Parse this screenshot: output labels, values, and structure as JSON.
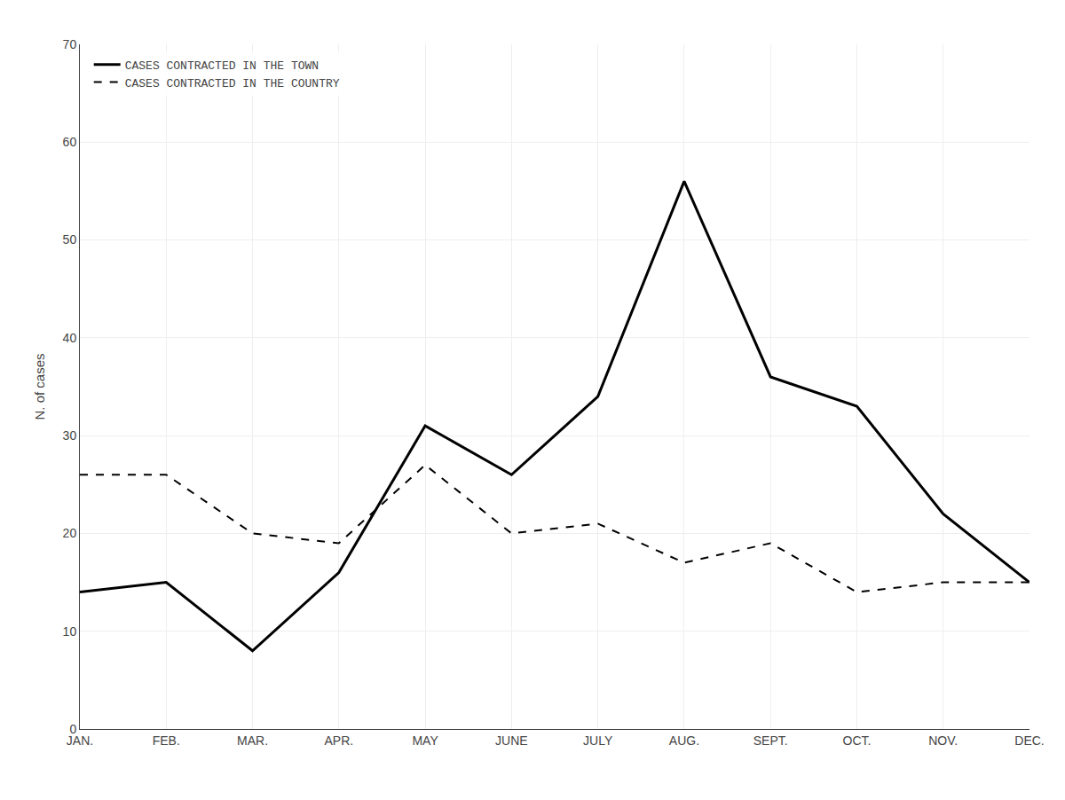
{
  "chart_data": {
    "type": "line",
    "ylabel": "N. of cases",
    "categories": [
      "JAN.",
      "FEB.",
      "MAR.",
      "APR.",
      "MAY",
      "JUNE",
      "JULY",
      "AUG.",
      "SEPT.",
      "OCT.",
      "NOV.",
      "DEC."
    ],
    "series": [
      {
        "name": "CASES CONTRACTED IN THE TOWN",
        "color": "#000000",
        "line_style": "solid",
        "values": [
          14,
          15,
          8,
          16,
          31,
          26,
          34,
          56,
          36,
          33,
          22,
          15
        ]
      },
      {
        "name": "CASES CONTRACTED IN THE COUNTRY",
        "color": "#000000",
        "line_style": "dashed",
        "values": [
          26,
          26,
          20,
          19,
          27,
          20,
          21,
          17,
          19,
          14,
          15,
          15
        ]
      }
    ],
    "ylim": [
      0,
      70
    ],
    "yticks": [
      0,
      10,
      20,
      30,
      40,
      50,
      60,
      70
    ],
    "grid": true,
    "legend": "upper left"
  }
}
